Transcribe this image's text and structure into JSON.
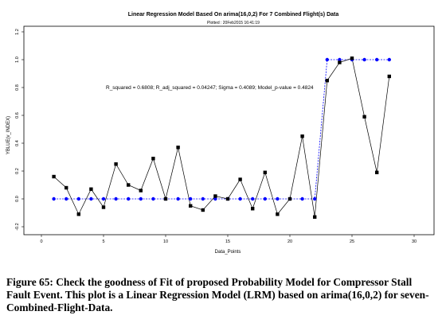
{
  "chart_data": {
    "type": "line",
    "title": "Linear Regression Model Based On arima(16,0,2) For 7 Combined Flight(s) Data",
    "subtitle": "Plotted : 20Feb2015 16:41:19",
    "xlabel": "Data_Points",
    "ylabel": "YBLUE(v_INDEX)",
    "xlim": [
      0,
      30
    ],
    "ylim": [
      -0.2,
      1.2
    ],
    "x_ticks": [
      "0",
      "5",
      "10",
      "15",
      "20",
      "25",
      "30"
    ],
    "y_ticks": [
      "-0.2",
      "0.0",
      "0.2",
      "0.4",
      "0.6",
      "0.8",
      "1.0",
      "1.2"
    ],
    "annotation": "R_squared = 0.6808; R_adj_squared = 0.04247; Sigma = 0.4089; Model_p-value = 0.4824",
    "grid": false,
    "series": [
      {
        "style": "black-line-squares",
        "color": "#000000",
        "x": [
          1,
          2,
          3,
          4,
          5,
          6,
          7,
          8,
          9,
          10,
          11,
          12,
          13,
          14,
          15,
          16,
          17,
          18,
          19,
          20,
          21,
          22,
          23,
          24,
          25,
          26,
          27,
          28
        ],
        "y": [
          0.16,
          0.08,
          -0.11,
          0.07,
          -0.06,
          0.25,
          0.1,
          0.06,
          0.29,
          0.0,
          0.37,
          -0.05,
          -0.08,
          0.02,
          0.0,
          0.14,
          -0.07,
          0.19,
          -0.11,
          0.0,
          0.45,
          -0.13,
          0.85,
          0.98,
          1.01,
          0.59,
          0.19,
          0.88
        ]
      },
      {
        "style": "blue-dashed-dots",
        "color": "#0000ff",
        "x": [
          1,
          2,
          3,
          4,
          5,
          6,
          7,
          8,
          9,
          10,
          11,
          12,
          13,
          14,
          15,
          16,
          17,
          18,
          19,
          20,
          21,
          22,
          23,
          24,
          25,
          26,
          27,
          28
        ],
        "y": [
          0,
          0,
          0,
          0,
          0,
          0,
          0,
          0,
          0,
          0,
          0,
          0,
          0,
          0,
          0,
          0,
          0,
          0,
          0,
          0,
          0,
          0,
          1,
          1,
          1,
          1,
          1,
          1
        ]
      }
    ]
  },
  "caption": {
    "text": "Figure 65: Check the goodness of Fit of proposed Probability Model for Compressor Stall Fault Event. This plot is a Linear Regression Model (LRM) based on arima(16,0,2) for seven-Combined-Flight-Data."
  }
}
